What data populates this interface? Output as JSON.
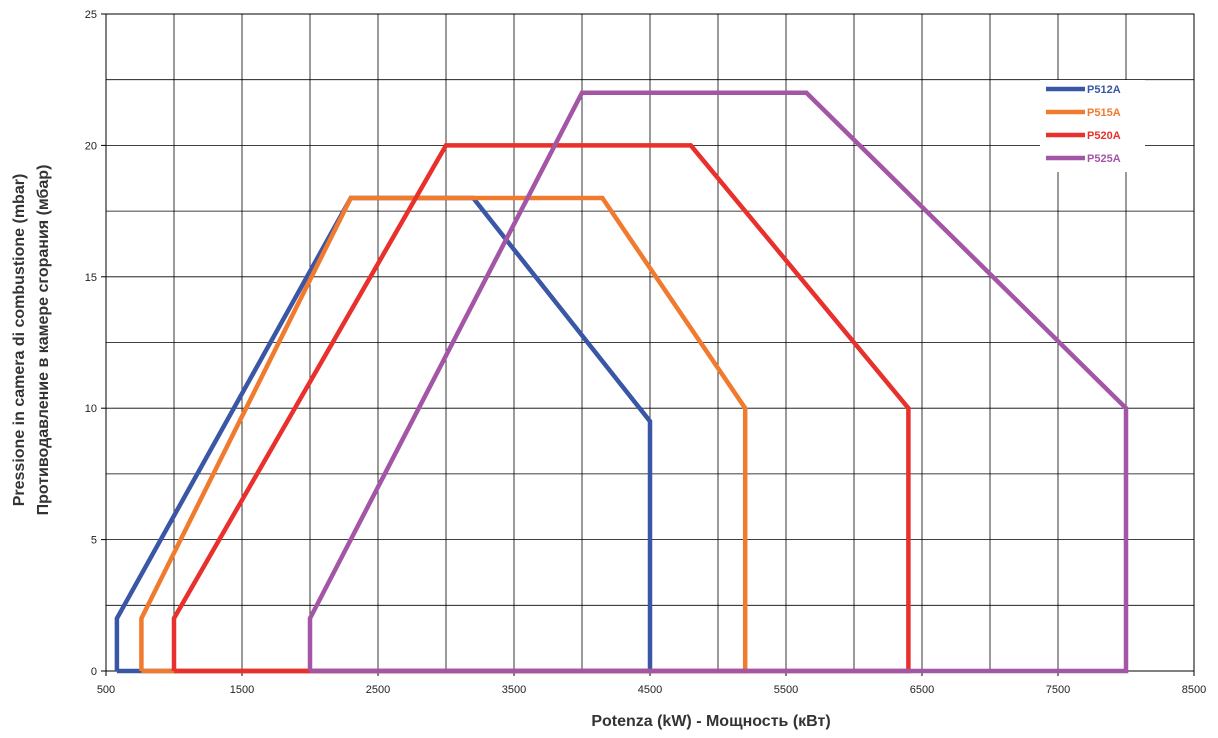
{
  "chart_data": {
    "type": "line",
    "xlabel": "Potenza (kW) - Мощность  (кВт)",
    "ylabel_line1": "Pressione in camera di combustione (mbar)",
    "ylabel_line2": "Противодавление в камере сгорания (мбар)",
    "xlim": [
      500,
      8500
    ],
    "ylim": [
      0,
      25
    ],
    "x_ticks": [
      "500",
      "1500",
      "2500",
      "3500",
      "4500",
      "5500",
      "6500",
      "7500",
      "8500"
    ],
    "y_ticks": [
      "0",
      "5",
      "10",
      "15",
      "20",
      "25"
    ],
    "grid": true,
    "legend_position": "top-right",
    "series": [
      {
        "name": "P512A",
        "color": "#3a56a6",
        "points": [
          [
            580,
            0
          ],
          [
            580,
            2
          ],
          [
            2300,
            18
          ],
          [
            3200,
            18
          ],
          [
            4500,
            9.5
          ],
          [
            4500,
            0
          ],
          [
            580,
            0
          ]
        ]
      },
      {
        "name": "P515A",
        "color": "#f07a2d",
        "points": [
          [
            760,
            0
          ],
          [
            760,
            2
          ],
          [
            2300,
            18
          ],
          [
            4150,
            18
          ],
          [
            5200,
            10
          ],
          [
            5200,
            0
          ],
          [
            760,
            0
          ]
        ]
      },
      {
        "name": "P520A",
        "color": "#e8302c",
        "points": [
          [
            1000,
            0
          ],
          [
            1000,
            2
          ],
          [
            3000,
            20
          ],
          [
            4800,
            20
          ],
          [
            6400,
            10
          ],
          [
            6400,
            0
          ],
          [
            1000,
            0
          ]
        ]
      },
      {
        "name": "P525A",
        "color": "#a356a6",
        "points": [
          [
            2000,
            0
          ],
          [
            2000,
            2
          ],
          [
            4000,
            22
          ],
          [
            5650,
            22
          ],
          [
            8000,
            10
          ],
          [
            8000,
            0
          ],
          [
            2000,
            0
          ]
        ]
      }
    ]
  }
}
